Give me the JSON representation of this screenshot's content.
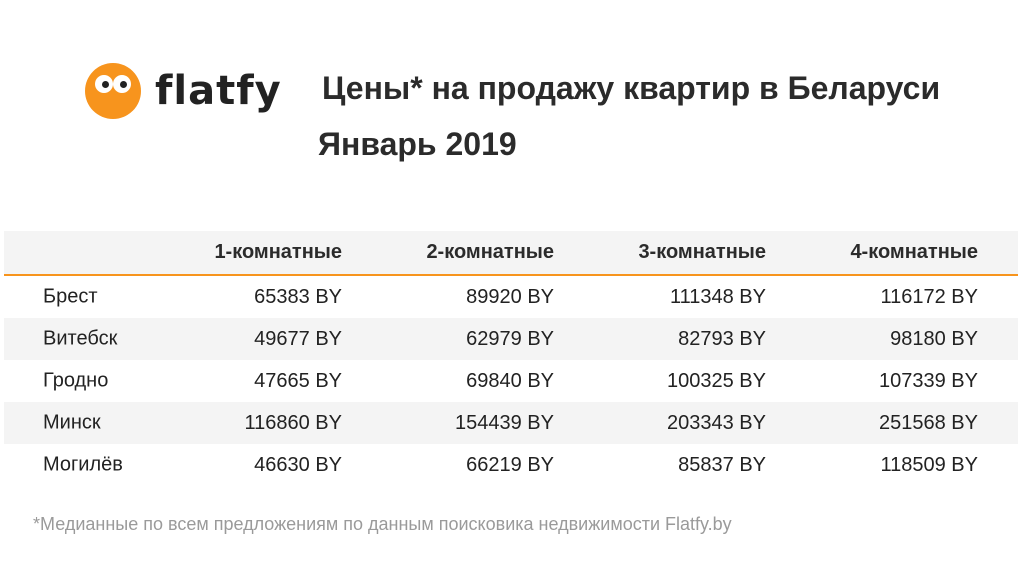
{
  "logo": {
    "text": "flatfy",
    "color": "#f7941d"
  },
  "title": "Цены* на продажу квартир в Беларуси",
  "subtitle": "Январь 2019",
  "table": {
    "headers": [
      "1-комнатные",
      "2-комнатные",
      "3-комнатные",
      "4-комнатные"
    ],
    "rows": [
      {
        "city": "Брест",
        "values": [
          "65383 BY",
          "89920 BY",
          "111348 BY",
          "116172 BY"
        ]
      },
      {
        "city": "Витебск",
        "values": [
          "49677 BY",
          "62979 BY",
          "82793 BY",
          "98180 BY"
        ]
      },
      {
        "city": "Гродно",
        "values": [
          "47665 BY",
          "69840 BY",
          "100325 BY",
          "107339 BY"
        ]
      },
      {
        "city": "Минск",
        "values": [
          "116860 BY",
          "154439 BY",
          "203343 BY",
          "251568 BY"
        ]
      },
      {
        "city": "Могилёв",
        "values": [
          "46630 BY",
          "66219 BY",
          "85837 BY",
          "118509 BY"
        ]
      }
    ]
  },
  "footnote": "*Медианные по всем предложениям по данным поисковика недвижимости Flatfy.by"
}
